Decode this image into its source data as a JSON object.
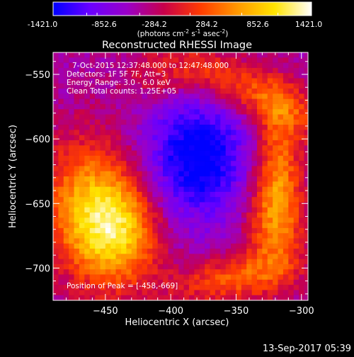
{
  "colorbar": {
    "ticks": [
      "-1421.0",
      "-852.6",
      "-284.2",
      "284.2",
      "852.6",
      "1421.0"
    ],
    "units_prefix": "(photons cm",
    "units_exp1": "-2",
    "units_mid": " s",
    "units_exp2": "-1",
    "units_suffix": " asec",
    "units_exp3": "-2",
    "units_close": ")",
    "range": [
      -1421.0,
      1421.0
    ]
  },
  "info": {
    "time_range": "7-Oct-2015 12:37:48.000 to 12:47:48.000",
    "detectors": "Detectors: 1F 5F 7F, Att=3",
    "energy": "Energy Range: 3.0 - 6.0 keV",
    "clean": "Clean     Total counts: 1.25E+05",
    "peak": "Position of Peak = [-458,-669]"
  },
  "footer": {
    "timestamp": "13-Sep-2017 05:39"
  },
  "chart_data": {
    "type": "heatmap",
    "title": "Reconstructed RHESSI Image",
    "xlabel": "Heliocentric X (arcsec)",
    "ylabel": "Heliocentric Y (arcsec)",
    "xlim": [
      -490,
      -295
    ],
    "ylim": [
      -725,
      -533
    ],
    "x_ticks": [
      -450,
      -400,
      -350,
      -300
    ],
    "y_ticks": [
      -550,
      -600,
      -650,
      -700
    ],
    "x_tick_labels": [
      "−450",
      "−400",
      "−350",
      "−300"
    ],
    "y_tick_labels": [
      "−550",
      "−600",
      "−650",
      "−700"
    ],
    "peak_position": [
      -458,
      -669
    ],
    "colormap": [
      "#0000ff",
      "#6a00ff",
      "#9a00c8",
      "#c8004a",
      "#ff3c00",
      "#ff9900",
      "#ffe400",
      "#ffffff"
    ],
    "sources": [
      {
        "x": -455,
        "y": -660,
        "sx": 28,
        "sy": 40,
        "rot": 15,
        "amp": 1.0
      },
      {
        "x": -440,
        "y": -670,
        "sx": 20,
        "sy": 22,
        "rot": 0,
        "amp": 0.35
      },
      {
        "x": -340,
        "y": -562,
        "sx": 55,
        "sy": 14,
        "rot": -25,
        "amp": 0.55
      },
      {
        "x": -318,
        "y": -615,
        "sx": 12,
        "sy": 34,
        "rot": 0,
        "amp": 0.55
      },
      {
        "x": -320,
        "y": -665,
        "sx": 16,
        "sy": 30,
        "rot": 0,
        "amp": 0.6
      },
      {
        "x": -352,
        "y": -708,
        "sx": 32,
        "sy": 13,
        "rot": 10,
        "amp": 0.55
      },
      {
        "x": -410,
        "y": -555,
        "sx": 22,
        "sy": 12,
        "rot": 0,
        "amp": 0.25
      }
    ],
    "negative_region": {
      "x": -380,
      "y": -615,
      "sx": 28,
      "sy": 34,
      "amp": -0.75
    },
    "background": -0.35
  }
}
